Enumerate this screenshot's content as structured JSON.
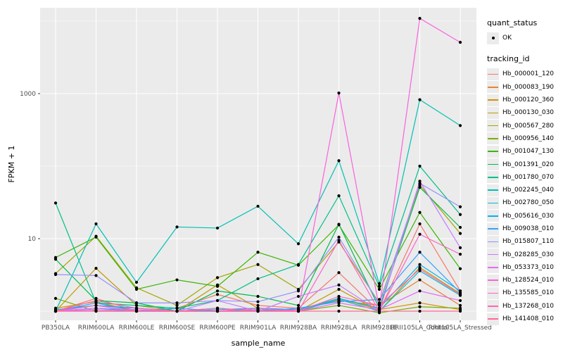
{
  "legend": {
    "quant_status_title": "quant_status",
    "ok_label": "OK",
    "tracking_title": "tracking_id"
  },
  "chart_data": {
    "type": "line",
    "title": "",
    "xlabel": "sample_name",
    "ylabel": "FPKM + 1",
    "y_scale": "log10",
    "ylim": [
      0.9,
      12000
    ],
    "y_major_ticks": [
      {
        "label": "10",
        "value": 10
      },
      {
        "label": "1000",
        "value": 1000
      }
    ],
    "y_minor_gridlines": [
      1,
      100,
      10000
    ],
    "grid": true,
    "legend_position": "right",
    "panel_background": "#EBEBEB",
    "gridline_color": "#FFFFFF",
    "point_color": "#000000",
    "categories": [
      "PB350LA",
      "RRIM600LA",
      "RRIM600LE",
      "RRIM600SE",
      "RRIM600PE",
      "RRIM901LA",
      "RRIM928BA",
      "RRIM928LA",
      "RRIM928LE",
      "RRII105LA_Control",
      "RRII105LA_Stressed"
    ],
    "series": [
      {
        "name": "Hb_000001_120",
        "color": "#F8766D",
        "values": [
          1.0,
          1.5,
          1.0,
          1.1,
          1.7,
          1.2,
          1.1,
          3.4,
          1.0,
          16,
          1.9
        ]
      },
      {
        "name": "Hb_000083_190",
        "color": "#EA8331",
        "values": [
          1.0,
          1.2,
          1.1,
          1.0,
          1.1,
          1.0,
          1.05,
          1.4,
          1.2,
          2.7,
          1.2
        ]
      },
      {
        "name": "Hb_000120_360",
        "color": "#D89000",
        "values": [
          1.1,
          1.35,
          1.0,
          1.0,
          1.0,
          1.1,
          1.0,
          1.5,
          1.05,
          1.3,
          1.05
        ]
      },
      {
        "name": "Hb_000130_030",
        "color": "#C09B00",
        "values": [
          1.0,
          3.9,
          1.2,
          1.0,
          2.3,
          1.1,
          1.0,
          2.0,
          1.0,
          4.0,
          1.75
        ]
      },
      {
        "name": "Hb_000567_280",
        "color": "#A3A500",
        "values": [
          3.3,
          10.8,
          2.1,
          1.2,
          2.9,
          4.4,
          2.0,
          9.0,
          1.3,
          55,
          11.8
        ]
      },
      {
        "name": "Hb_000956_140",
        "color": "#7CAE00",
        "values": [
          1.5,
          1.0,
          1.0,
          1.1,
          1.0,
          1.0,
          1.0,
          1.2,
          0.95,
          1.15,
          1.1
        ]
      },
      {
        "name": "Hb_001047_130",
        "color": "#39B600",
        "values": [
          5.5,
          10.5,
          2.0,
          2.7,
          2.2,
          6.5,
          4.3,
          15.5,
          2.0,
          23,
          3.85
        ]
      },
      {
        "name": "Hb_001391_020",
        "color": "#00BB4E",
        "values": [
          5.2,
          1.4,
          1.3,
          1.0,
          1.9,
          1.6,
          1.2,
          15.8,
          1.1,
          51,
          14.3
        ]
      },
      {
        "name": "Hb_001780_070",
        "color": "#00C087",
        "values": [
          31,
          1.3,
          1.2,
          1.1,
          1.4,
          2.8,
          4.4,
          39,
          2.2,
          100,
          21.5
        ]
      },
      {
        "name": "Hb_002245_040",
        "color": "#00C0B4",
        "values": [
          1.0,
          16,
          2.5,
          14.5,
          14,
          28,
          8.5,
          119,
          2.4,
          825,
          363
        ]
      },
      {
        "name": "Hb_002780_050",
        "color": "#00BDD4",
        "values": [
          1.0,
          1.1,
          1.0,
          1.0,
          1.0,
          1.05,
          1.0,
          1.45,
          1.0,
          3.6,
          1.65
        ]
      },
      {
        "name": "Hb_005616_030",
        "color": "#00B4EF",
        "values": [
          1.05,
          1.2,
          1.1,
          1.0,
          1.05,
          1.1,
          1.05,
          1.5,
          1.1,
          4.4,
          1.9
        ]
      },
      {
        "name": "Hb_009038_010",
        "color": "#35A2FF",
        "values": [
          1.0,
          1.3,
          1.0,
          1.1,
          1.0,
          1.0,
          1.1,
          1.35,
          1.45,
          6.5,
          1.8
        ]
      },
      {
        "name": "Hb_015807_110",
        "color": "#9590FF",
        "values": [
          3.2,
          3.1,
          1.3,
          1.3,
          1.4,
          1.35,
          1.9,
          10.5,
          1.25,
          58,
          27.5
        ]
      },
      {
        "name": "Hb_028285_030",
        "color": "#C77CFF",
        "values": [
          1.0,
          1.1,
          1.05,
          1.0,
          1.4,
          1.0,
          1.6,
          2.3,
          1.0,
          62,
          7.5
        ]
      },
      {
        "name": "Hb_053373_010",
        "color": "#E76BF3",
        "values": [
          1.0,
          1.05,
          1.0,
          1.0,
          1.0,
          1.0,
          1.0,
          1.3,
          1.05,
          1.9,
          1.4
        ]
      },
      {
        "name": "Hb_128524_010",
        "color": "#FA62DB",
        "values": [
          1.0,
          1.0,
          1.0,
          1.0,
          1.0,
          1.0,
          1.05,
          1020,
          1.1,
          10900,
          5100
        ]
      },
      {
        "name": "Hb_135585_010",
        "color": "#FF61C9",
        "values": [
          1.0,
          1.2,
          1.0,
          1.0,
          1.0,
          1.1,
          1.0,
          9.5,
          1.0,
          11.5,
          6.1
        ]
      },
      {
        "name": "Hb_137268_010",
        "color": "#FF67B2",
        "values": [
          1.0,
          1.4,
          1.1,
          1.0,
          1.1,
          1.0,
          1.0,
          1.6,
          1.2,
          3.8,
          1.7
        ]
      },
      {
        "name": "Hb_141408_010",
        "color": "#FF6A98",
        "values": [
          1.0,
          1.0,
          1.0,
          1.0,
          1.0,
          1.0,
          1.0,
          1.0,
          1.0,
          1.0,
          1.0
        ]
      }
    ]
  }
}
